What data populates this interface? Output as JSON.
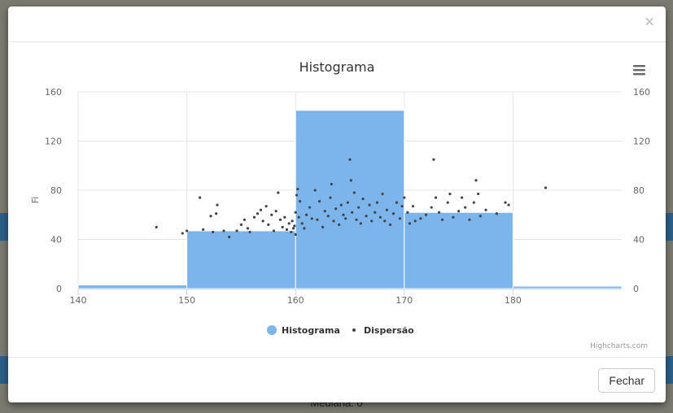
{
  "background": {
    "bottom_text": "Mediana: 0"
  },
  "modal": {
    "close_label": "×",
    "footer": {
      "close_button_label": "Fechar"
    }
  },
  "menu_icon": "hamburger-menu-icon",
  "credits": "Highcharts.com",
  "colors": {
    "histogram": "#7cb5ec",
    "scatter": "#434348"
  },
  "chart_data": {
    "type": "bar",
    "title": "Histograma",
    "ylabel": "Fi",
    "xlim": [
      140,
      190
    ],
    "ylim": [
      0,
      160
    ],
    "x_ticks": [
      140,
      150,
      160,
      170,
      180
    ],
    "y_ticks": [
      0,
      40,
      80,
      120,
      160
    ],
    "grid": true,
    "legend_position": "bottom-center",
    "series": [
      {
        "name": "Histograma",
        "type": "column",
        "bins": [
          {
            "from": 140,
            "to": 150,
            "value": 3
          },
          {
            "from": 150,
            "to": 160,
            "value": 47
          },
          {
            "from": 160,
            "to": 170,
            "value": 145
          },
          {
            "from": 170,
            "to": 180,
            "value": 62
          },
          {
            "from": 180,
            "to": 190,
            "value": 2
          }
        ]
      },
      {
        "name": "Dispersão",
        "type": "scatter",
        "points": [
          [
            147.2,
            50
          ],
          [
            149.6,
            45
          ],
          [
            150.0,
            47
          ],
          [
            151.2,
            74
          ],
          [
            151.5,
            48
          ],
          [
            152.2,
            59
          ],
          [
            152.4,
            46
          ],
          [
            152.7,
            61
          ],
          [
            152.8,
            68
          ],
          [
            153.4,
            47
          ],
          [
            153.9,
            42
          ],
          [
            154.6,
            47
          ],
          [
            155.0,
            52
          ],
          [
            155.3,
            56
          ],
          [
            155.6,
            49
          ],
          [
            155.8,
            46
          ],
          [
            156.2,
            58
          ],
          [
            156.5,
            61
          ],
          [
            156.8,
            64
          ],
          [
            157.0,
            55
          ],
          [
            157.3,
            67
          ],
          [
            157.5,
            52
          ],
          [
            157.8,
            60
          ],
          [
            158.0,
            47
          ],
          [
            158.2,
            63
          ],
          [
            158.4,
            78
          ],
          [
            158.6,
            56
          ],
          [
            158.8,
            50
          ],
          [
            159.0,
            58
          ],
          [
            159.2,
            48
          ],
          [
            159.4,
            53
          ],
          [
            159.6,
            46
          ],
          [
            159.7,
            55
          ],
          [
            159.8,
            49
          ],
          [
            159.9,
            51
          ],
          [
            160.0,
            44
          ],
          [
            160.0,
            62
          ],
          [
            160.1,
            76
          ],
          [
            160.2,
            81
          ],
          [
            160.3,
            58
          ],
          [
            160.4,
            71
          ],
          [
            160.6,
            53
          ],
          [
            160.8,
            49
          ],
          [
            161.0,
            60
          ],
          [
            161.3,
            66
          ],
          [
            161.5,
            57
          ],
          [
            161.8,
            80
          ],
          [
            162.0,
            56
          ],
          [
            162.2,
            71
          ],
          [
            162.5,
            50
          ],
          [
            162.7,
            63
          ],
          [
            163.0,
            59
          ],
          [
            163.2,
            74
          ],
          [
            163.3,
            85
          ],
          [
            163.5,
            55
          ],
          [
            163.7,
            65
          ],
          [
            164.0,
            52
          ],
          [
            164.2,
            68
          ],
          [
            164.4,
            60
          ],
          [
            164.6,
            57
          ],
          [
            164.8,
            70
          ],
          [
            165.0,
            105
          ],
          [
            165.1,
            88
          ],
          [
            165.2,
            62
          ],
          [
            165.4,
            78
          ],
          [
            165.6,
            56
          ],
          [
            165.8,
            66
          ],
          [
            166.0,
            53
          ],
          [
            166.2,
            73
          ],
          [
            166.5,
            59
          ],
          [
            166.8,
            68
          ],
          [
            167.0,
            55
          ],
          [
            167.3,
            62
          ],
          [
            167.5,
            70
          ],
          [
            167.8,
            58
          ],
          [
            168.0,
            77
          ],
          [
            168.2,
            55
          ],
          [
            168.4,
            64
          ],
          [
            168.7,
            52
          ],
          [
            169.0,
            61
          ],
          [
            169.3,
            70
          ],
          [
            169.6,
            57
          ],
          [
            169.8,
            67
          ],
          [
            170.0,
            74
          ],
          [
            170.3,
            62
          ],
          [
            170.5,
            53
          ],
          [
            170.8,
            67
          ],
          [
            171.0,
            55
          ],
          [
            171.5,
            57
          ],
          [
            172.0,
            60
          ],
          [
            172.5,
            66
          ],
          [
            172.7,
            105
          ],
          [
            172.9,
            74
          ],
          [
            173.2,
            62
          ],
          [
            173.5,
            56
          ],
          [
            174.0,
            70
          ],
          [
            174.2,
            77
          ],
          [
            174.5,
            58
          ],
          [
            175.0,
            63
          ],
          [
            175.3,
            74
          ],
          [
            175.6,
            66
          ],
          [
            176.0,
            56
          ],
          [
            176.4,
            70
          ],
          [
            176.6,
            88
          ],
          [
            176.8,
            77
          ],
          [
            177.0,
            59
          ],
          [
            177.5,
            64
          ],
          [
            178.5,
            61
          ],
          [
            179.3,
            70
          ],
          [
            179.6,
            68
          ],
          [
            183.0,
            82
          ]
        ]
      }
    ]
  }
}
